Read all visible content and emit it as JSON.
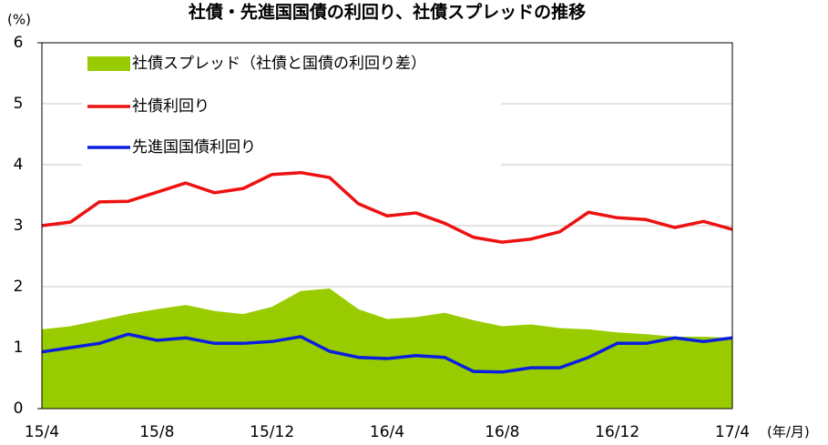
{
  "chart_data": {
    "type": "line",
    "title": "社債・先進国国債の利回り、社債スプレッドの推移",
    "y_label": "(%)",
    "x_label": "(年/月)",
    "categories": [
      "15/4",
      null,
      null,
      null,
      "15/8",
      null,
      null,
      null,
      "15/12",
      null,
      null,
      null,
      "16/4",
      null,
      null,
      null,
      "16/8",
      null,
      null,
      null,
      "16/12",
      null,
      null,
      null,
      "17/4"
    ],
    "series": [
      {
        "name": "社債スプレッド（社債と国債の利回り差）",
        "kind": "area",
        "color": "#99cc00",
        "values": [
          1.3,
          1.35,
          1.45,
          1.55,
          1.63,
          1.7,
          1.6,
          1.55,
          1.67,
          1.93,
          1.97,
          1.63,
          1.47,
          1.5,
          1.57,
          1.45,
          1.35,
          1.38,
          1.32,
          1.3,
          1.25,
          1.22,
          1.18,
          1.18,
          1.16
        ]
      },
      {
        "name": "社債利回り",
        "kind": "line",
        "color": "#ee1111",
        "values": [
          3.0,
          3.06,
          3.39,
          3.4,
          3.55,
          3.7,
          3.54,
          3.61,
          3.84,
          3.87,
          3.79,
          3.36,
          3.16,
          3.21,
          3.04,
          2.81,
          2.73,
          2.78,
          2.9,
          3.22,
          3.13,
          3.1,
          2.97,
          3.07,
          2.94
        ]
      },
      {
        "name": "先進国国債利回り",
        "kind": "line",
        "color": "#0a1fe0",
        "values": [
          0.93,
          1.0,
          1.07,
          1.22,
          1.12,
          1.16,
          1.07,
          1.07,
          1.1,
          1.18,
          0.94,
          0.84,
          0.82,
          0.87,
          0.84,
          0.61,
          0.6,
          0.67,
          0.67,
          0.84,
          1.07,
          1.07,
          1.16,
          1.1,
          1.16
        ]
      }
    ],
    "ylim": [
      0,
      6
    ],
    "yticks": [
      0,
      1,
      2,
      3,
      4,
      5,
      6
    ],
    "grid": true
  }
}
